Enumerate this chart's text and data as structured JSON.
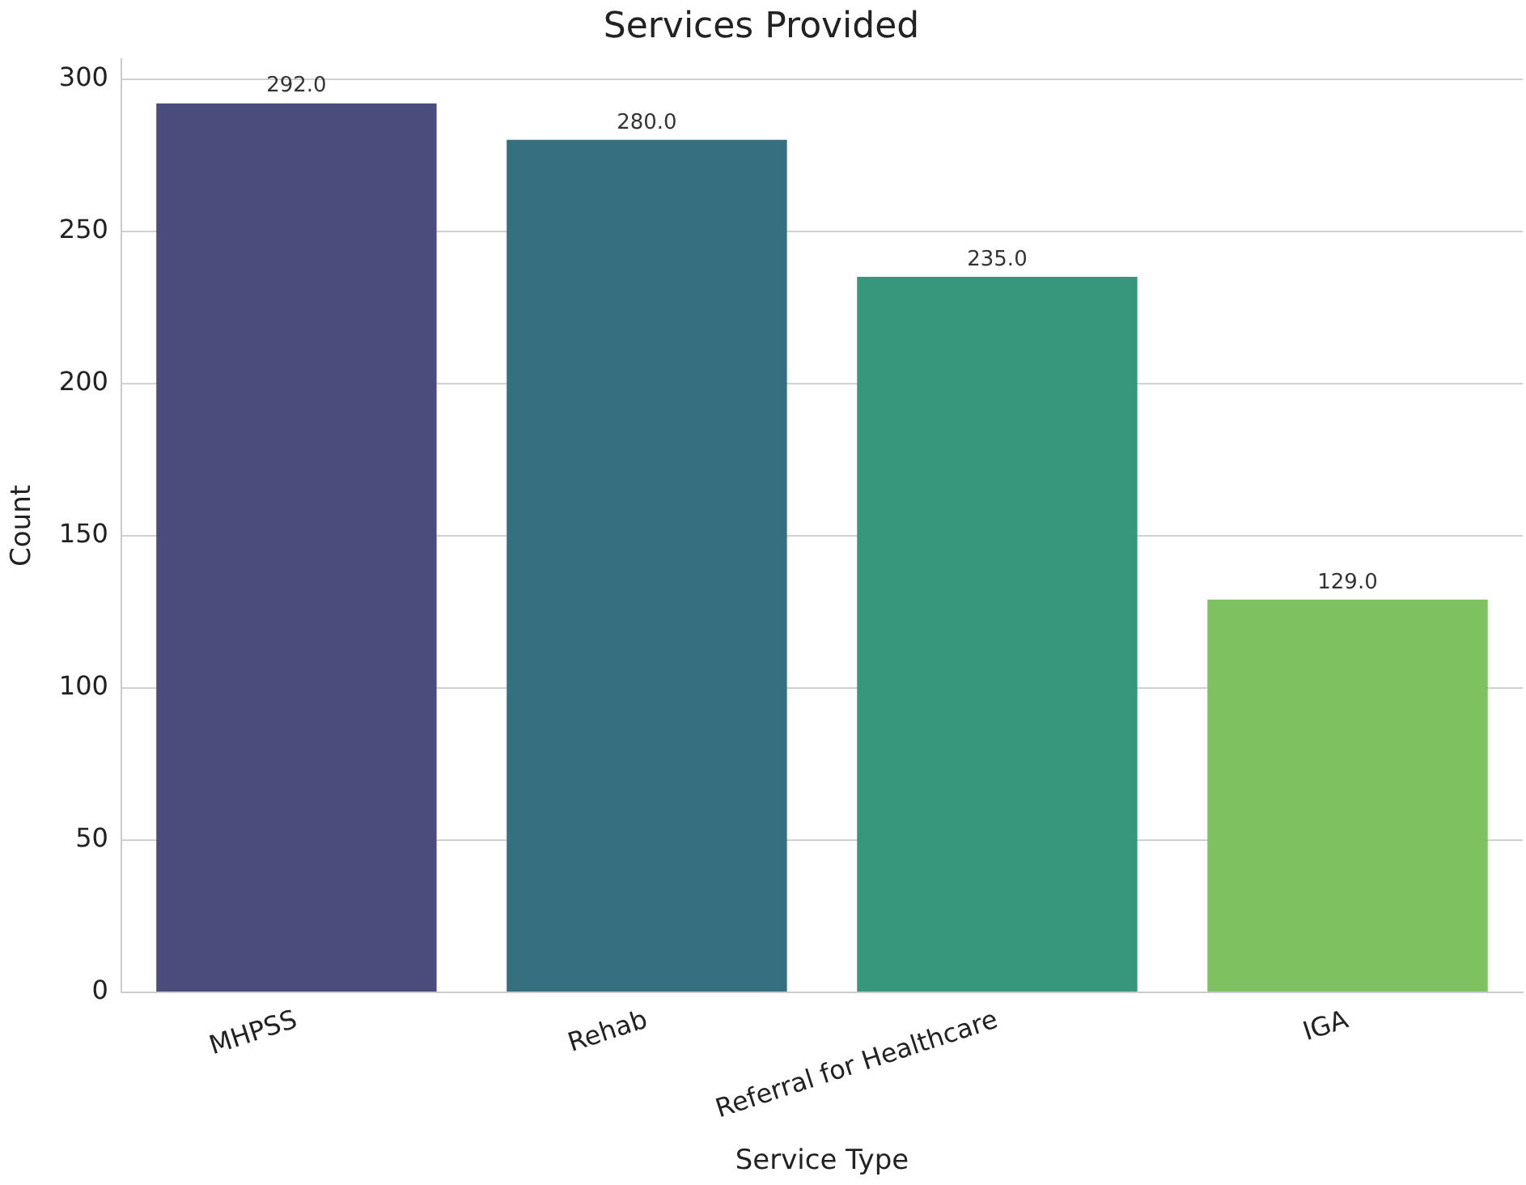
{
  "chart_data": {
    "type": "bar",
    "title": "Services Provided",
    "xlabel": "Service Type",
    "ylabel": "Count",
    "categories": [
      "MHPSS",
      "Rehab",
      "Referral for Healthcare",
      "IGA"
    ],
    "values": [
      292,
      280,
      235,
      129
    ],
    "colors": [
      "#4a4c7b",
      "#367080",
      "#36977c",
      "#7dc160"
    ],
    "value_labels": [
      "292.0",
      "280.0",
      "235.0",
      "129.0"
    ],
    "ylim": [
      0,
      306.6
    ],
    "yticks": [
      0,
      50,
      100,
      150,
      200,
      250,
      300
    ],
    "grid": "y",
    "legend": false
  }
}
